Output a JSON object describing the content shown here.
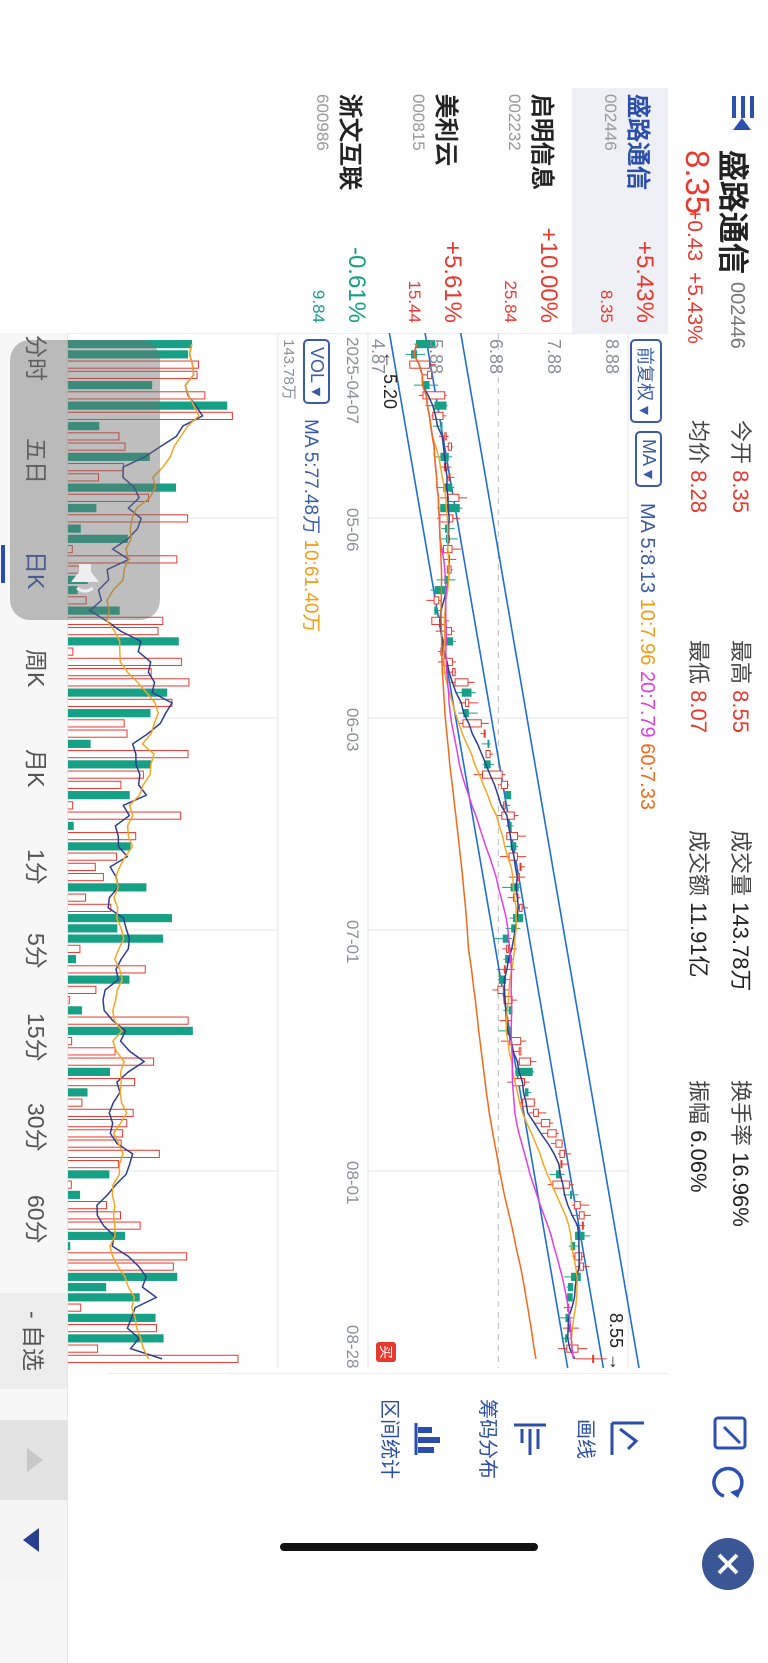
{
  "header": {
    "title": "盛路通信",
    "code": "002446",
    "price": "8.35",
    "change_abs": "+0.43",
    "change_pct": "+5.43%",
    "stats": [
      {
        "label": "今开",
        "value": "8.35",
        "color": "#e8392f"
      },
      {
        "label": "最高",
        "value": "8.55",
        "color": "#e8392f"
      },
      {
        "label": "成交量",
        "value": "143.78万",
        "color": "#222222"
      },
      {
        "label": "换手率",
        "value": "16.96%",
        "color": "#222222"
      },
      {
        "label": "均价",
        "value": "8.28",
        "color": "#e8392f"
      },
      {
        "label": "最低",
        "value": "8.07",
        "color": "#e8392f"
      },
      {
        "label": "成交额",
        "value": "11.91亿",
        "color": "#222222"
      },
      {
        "label": "振幅",
        "value": "6.06%",
        "color": "#222222"
      }
    ]
  },
  "watchlist": [
    {
      "name": "盛路通信",
      "code": "002446",
      "pct": "+5.43%",
      "price": "8.35",
      "color": "#e8392f",
      "active": true
    },
    {
      "name": "启明信息",
      "code": "002232",
      "pct": "+10.00%",
      "price": "25.84",
      "color": "#e8392f",
      "active": false
    },
    {
      "name": "美利云",
      "code": "000815",
      "pct": "+5.61%",
      "price": "15.44",
      "color": "#e8392f",
      "active": false
    },
    {
      "name": "浙文互联",
      "code": "600986",
      "pct": "-0.61%",
      "price": "9.84",
      "color": "#16a085",
      "active": false
    }
  ],
  "chart": {
    "adjust_button": "前复权",
    "indicator_button": "MA",
    "ma_line": {
      "label": "MA",
      "ma5": "5:8.13",
      "ma10": "10:7.96",
      "ma20": "20:7.79",
      "ma60": "60:7.33"
    },
    "y_ticks": [
      "8.88",
      "7.88",
      "6.88",
      "5.88",
      "4.87"
    ],
    "max_label": "8.55",
    "min_label": "5.20",
    "x_ticks": [
      "2025-04-07",
      "05-06",
      "06-03",
      "07-01",
      "08-01",
      "08-28"
    ],
    "vol_button": "VOL",
    "vol_ma_label": "MA",
    "vol_ma5": "5:77.48万",
    "vol_ma10": "10:61.40万",
    "vol_max": "143.78万",
    "buy_marker": "买",
    "colors": {
      "up": "#e8392f",
      "down": "#16a085",
      "ma5": "#2b3f8f",
      "ma10": "#f5a623",
      "ma20": "#e040e0",
      "ma60": "#f06a1c",
      "channel": "#1e6fd0"
    }
  },
  "chart_data": {
    "type": "candlestick",
    "x_range": [
      "2025-04-07",
      "2025-08-28"
    ],
    "ylim": [
      4.87,
      8.88
    ],
    "last": {
      "open": 8.35,
      "high": 8.55,
      "low": 8.07,
      "close": 8.35
    },
    "period_high": 8.55,
    "period_low": 5.2,
    "ma": {
      "ma5": 8.13,
      "ma10": 7.96,
      "ma20": 7.79,
      "ma60": 7.33
    },
    "volume": {
      "max": "143.78万",
      "ma5": "77.48万",
      "ma10": "61.40万"
    }
  },
  "tools": [
    {
      "label": "画线",
      "icon": "draw-line-icon"
    },
    {
      "label": "筹码分布",
      "icon": "chip-distribution-icon"
    },
    {
      "label": "区间统计",
      "icon": "range-stats-icon"
    }
  ],
  "periods": [
    "分时",
    "五日",
    "日K",
    "周K",
    "月K",
    "1分",
    "5分",
    "15分",
    "30分",
    "60分"
  ],
  "active_period": "日K",
  "watch_button": "- 自选"
}
